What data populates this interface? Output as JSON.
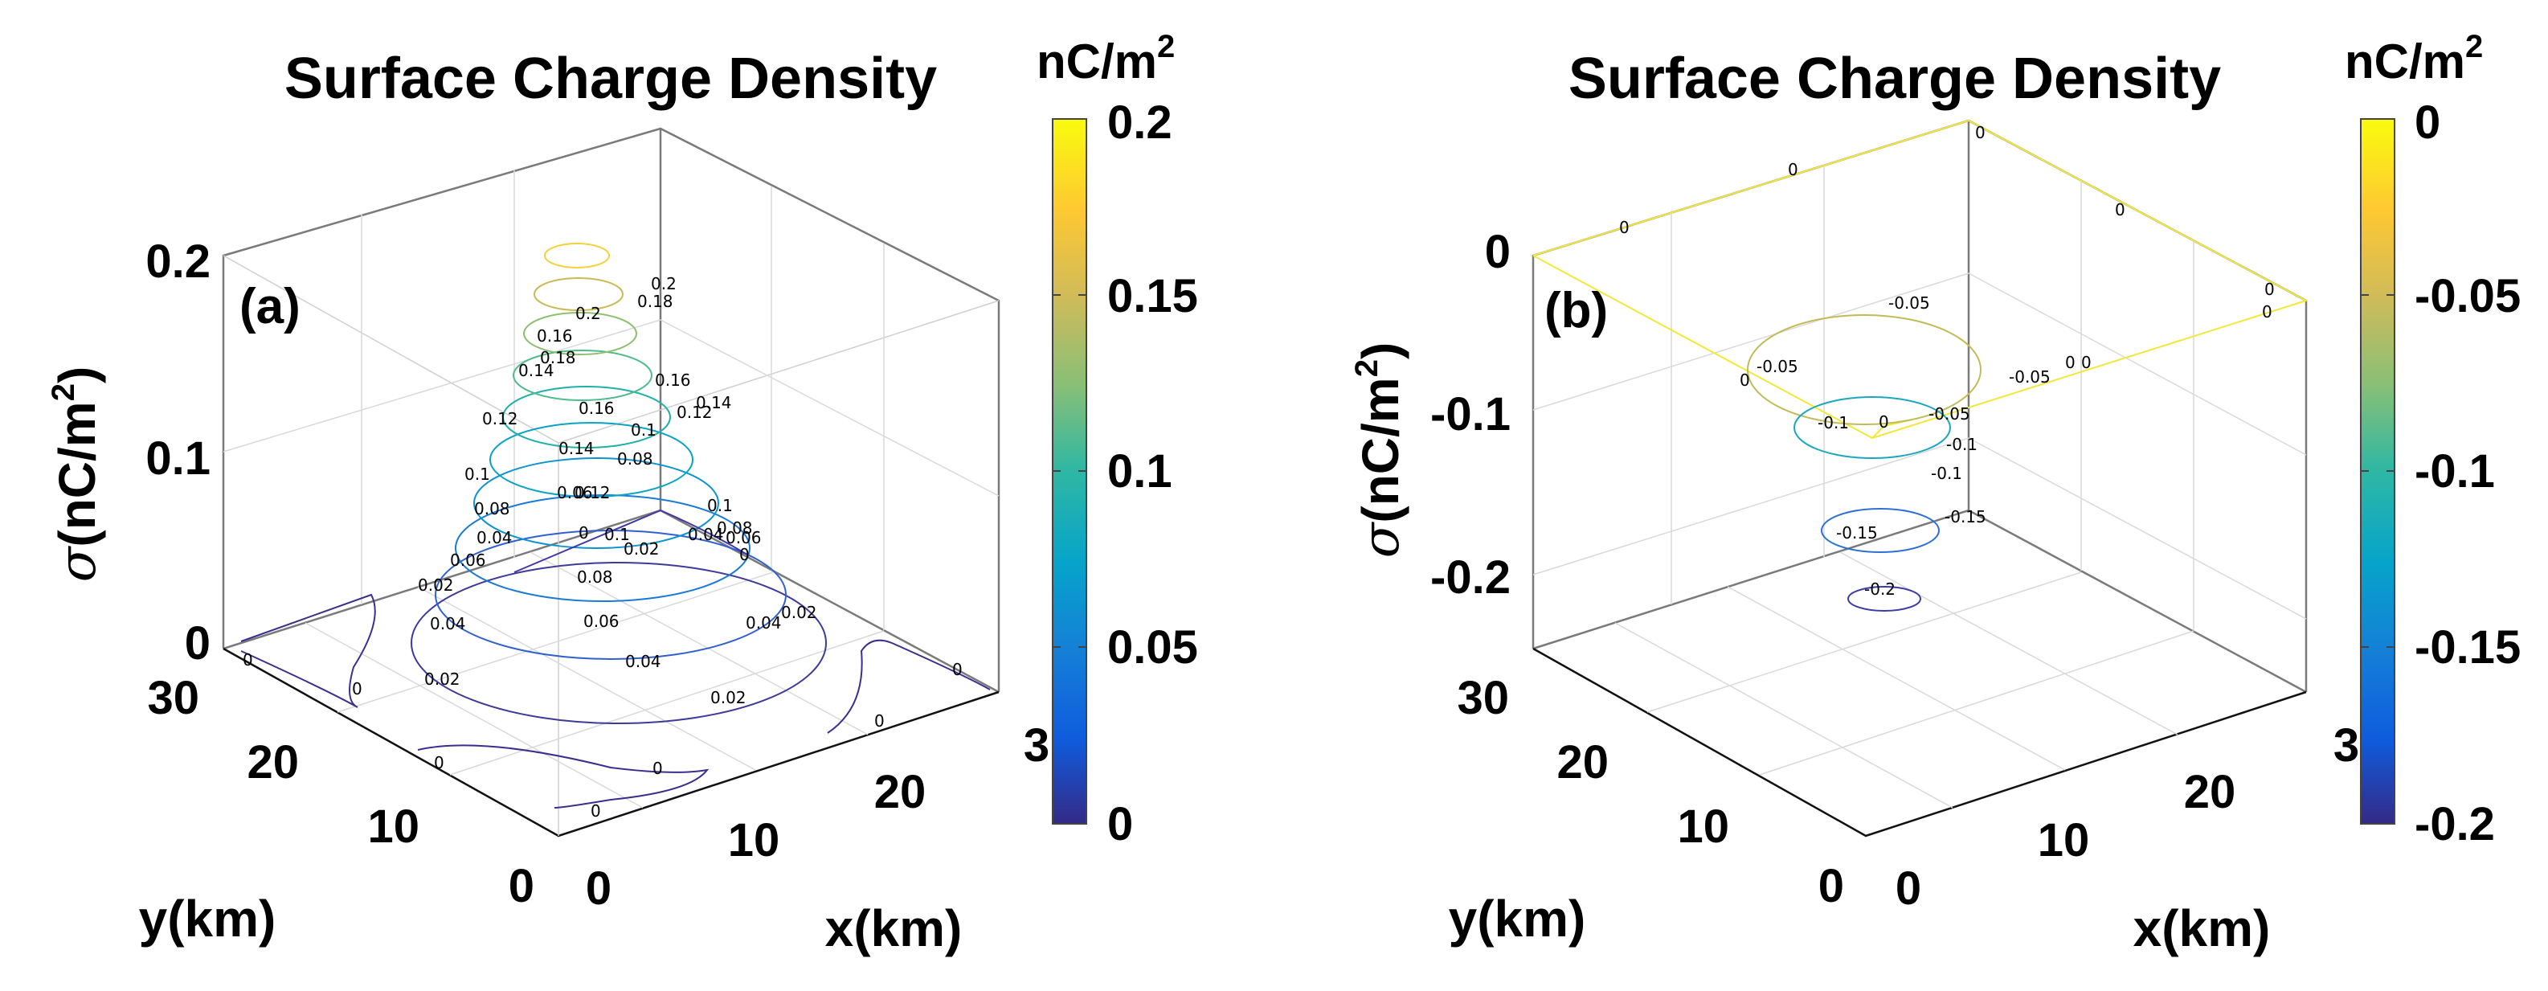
{
  "chart_data": [
    {
      "type": "3d-contour",
      "panel_label": "(a)",
      "title": "Surface Charge Density",
      "xlabel": "x(km)",
      "ylabel": "y(km)",
      "zlabel": "σ(nC/m²)",
      "zlabel_main": "(nC/m",
      "zlabel_sup": "2",
      "zlabel_close": ")",
      "zlabel_sigma": "σ",
      "colorbar_unit": "nC/m",
      "colorbar_unit_sup": "2",
      "colorbar_ticks": [
        "0.2",
        "0.15",
        "0.1",
        "0.05",
        "0"
      ],
      "colorbar_range": [
        0,
        0.2
      ],
      "x_ticks": [
        "0",
        "10",
        "20",
        "3"
      ],
      "y_ticks": [
        "0",
        "10",
        "20",
        "30"
      ],
      "z_ticks": [
        "0.2",
        "0.1",
        "0"
      ],
      "contour_levels": [
        0,
        0.02,
        0.04,
        0.06,
        0.08,
        0.1,
        0.12,
        0.14,
        0.16,
        0.18,
        0.2
      ],
      "contour_labels": [
        "0.2",
        "0.2",
        "0.18",
        "0.16",
        "0.18",
        "0.14",
        "0.16",
        "0.14",
        "0.12",
        "0.16",
        "0.12",
        "0.1",
        "0.14",
        "0.08",
        "0.1",
        "0.08",
        "0.06",
        "0.12",
        "0.1",
        "0.08",
        "0.04",
        "0.1",
        "0.04",
        "0.06",
        "0",
        "0.02",
        "0.06",
        "0",
        "0.02",
        "0.08",
        "0.04",
        "0.06",
        "0.04",
        "0.02",
        "0.04",
        "0.02",
        "0.02",
        "0",
        "0",
        "0",
        "0",
        "0",
        "0",
        "0"
      ]
    },
    {
      "type": "3d-contour",
      "panel_label": "(b)",
      "title": "Surface Charge Density",
      "xlabel": "x(km)",
      "ylabel": "y(km)",
      "zlabel": "σ(nC/m²)",
      "zlabel_main": "(nC/m",
      "zlabel_sup": "2",
      "zlabel_close": ")",
      "zlabel_sigma": "σ",
      "colorbar_unit": "nC/m",
      "colorbar_unit_sup": "2",
      "colorbar_ticks": [
        "0",
        "-0.05",
        "-0.1",
        "-0.15",
        "-0.2"
      ],
      "colorbar_range": [
        -0.2,
        0
      ],
      "x_ticks": [
        "0",
        "10",
        "20",
        "3"
      ],
      "y_ticks": [
        "0",
        "10",
        "20",
        "30"
      ],
      "z_ticks": [
        "0",
        "-0.1",
        "-0.2"
      ],
      "contour_levels": [
        0,
        -0.05,
        -0.1,
        -0.15,
        -0.2
      ],
      "contour_labels": [
        "0",
        "0",
        "0",
        "0",
        "0",
        "0",
        "0",
        "0",
        "-0.05",
        "-0.05",
        "-0.05",
        "0",
        "-0.05",
        "0",
        "-0.1",
        "-0.1",
        "-0.1",
        "-0.15",
        "-0.15",
        "-0.2"
      ]
    }
  ]
}
